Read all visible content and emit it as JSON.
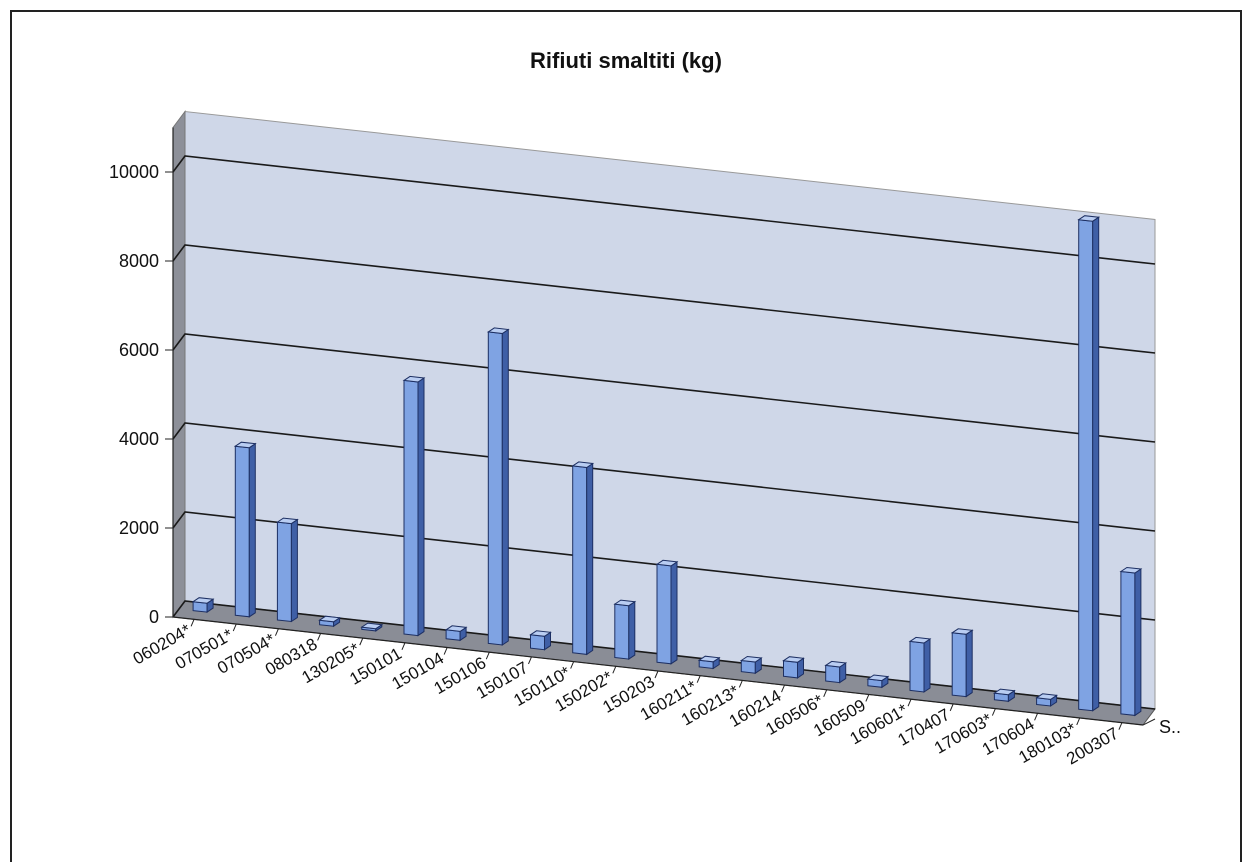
{
  "chart_data": {
    "type": "bar",
    "title": "Rifiuti smaltiti (kg)",
    "xlabel": "",
    "ylabel": "",
    "ylim": [
      0,
      11000
    ],
    "yticks": [
      0,
      2000,
      4000,
      6000,
      8000,
      10000
    ],
    "grid": true,
    "legend": "none",
    "series_axis_label": "S..",
    "categories": [
      "060204*",
      "070501*",
      "070504*",
      "080318",
      "130205*",
      "150101",
      "150104",
      "150106",
      "150107",
      "150110*",
      "150202*",
      "150203",
      "160211*",
      "160213*",
      "160214",
      "160506*",
      "160509",
      "160601*",
      "170407",
      "170603*",
      "170604",
      "180103*",
      "200307"
    ],
    "series": [
      {
        "values": [
          200,
          3800,
          2200,
          100,
          50,
          5700,
          200,
          7000,
          300,
          4200,
          1200,
          2200,
          150,
          250,
          350,
          350,
          150,
          1100,
          1400,
          150,
          150,
          11000,
          3200
        ]
      }
    ],
    "colors": {
      "bar_front": "#7fa3e3",
      "bar_side": "#3f5fa6",
      "bar_top": "#b9cdf2",
      "bar_edge": "#1d2f62",
      "wall": "#cfd7e8",
      "wall_left": "#8d9099",
      "floor": "#8a8d96",
      "grid": "#1a1a1a"
    }
  }
}
